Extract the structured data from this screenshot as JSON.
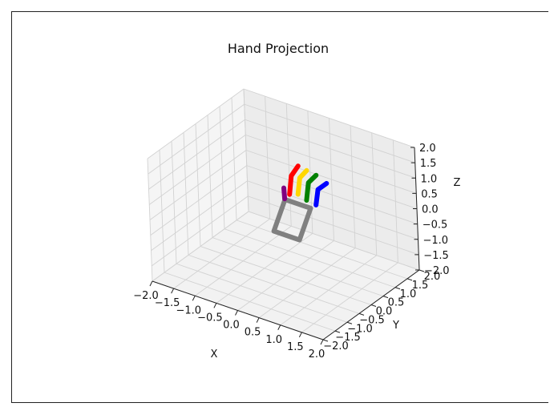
{
  "chart_data": {
    "type": "line3d",
    "title": "Hand Projection",
    "xlabel": "X",
    "ylabel": "Y",
    "zlabel": "Z",
    "xlim": [
      -2.0,
      2.0
    ],
    "ylim": [
      -2.0,
      2.0
    ],
    "zlim": [
      -2.0,
      2.0
    ],
    "ticks": [
      -2.0,
      -1.5,
      -1.0,
      -0.5,
      0.0,
      0.5,
      1.0,
      1.5,
      2.0
    ],
    "tick_labels": [
      "−2.0",
      "−1.5",
      "−1.0",
      "−0.5",
      "0.0",
      "0.5",
      "1.0",
      "1.5",
      "2.0"
    ],
    "grid": true,
    "palm": {
      "color": "#808080",
      "points": [
        [
          -0.3,
          0.6,
          0.0
        ],
        [
          0.3,
          0.6,
          0.0
        ],
        [
          0.3,
          0.1,
          -0.75
        ],
        [
          -0.3,
          0.1,
          -0.75
        ],
        [
          -0.3,
          0.6,
          0.0
        ]
      ]
    },
    "fingers": [
      {
        "color": "#800080",
        "points": [
          [
            -0.32,
            0.62,
            0.0
          ],
          [
            -0.33,
            0.62,
            0.35
          ]
        ]
      },
      {
        "color": "#ff0000",
        "points": [
          [
            -0.2,
            0.62,
            0.2
          ],
          [
            -0.2,
            0.72,
            0.75
          ],
          [
            -0.1,
            0.84,
            1.05
          ]
        ]
      },
      {
        "color": "#ffd700",
        "points": [
          [
            0.0,
            0.62,
            0.3
          ],
          [
            0.0,
            0.72,
            0.78
          ],
          [
            0.1,
            0.84,
            1.0
          ]
        ]
      },
      {
        "color": "#008000",
        "points": [
          [
            0.2,
            0.62,
            0.2
          ],
          [
            0.2,
            0.72,
            0.72
          ],
          [
            0.32,
            0.84,
            0.95
          ]
        ]
      },
      {
        "color": "#0000ff",
        "points": [
          [
            0.42,
            0.62,
            0.15
          ],
          [
            0.42,
            0.72,
            0.6
          ],
          [
            0.56,
            0.84,
            0.8
          ]
        ]
      }
    ]
  }
}
